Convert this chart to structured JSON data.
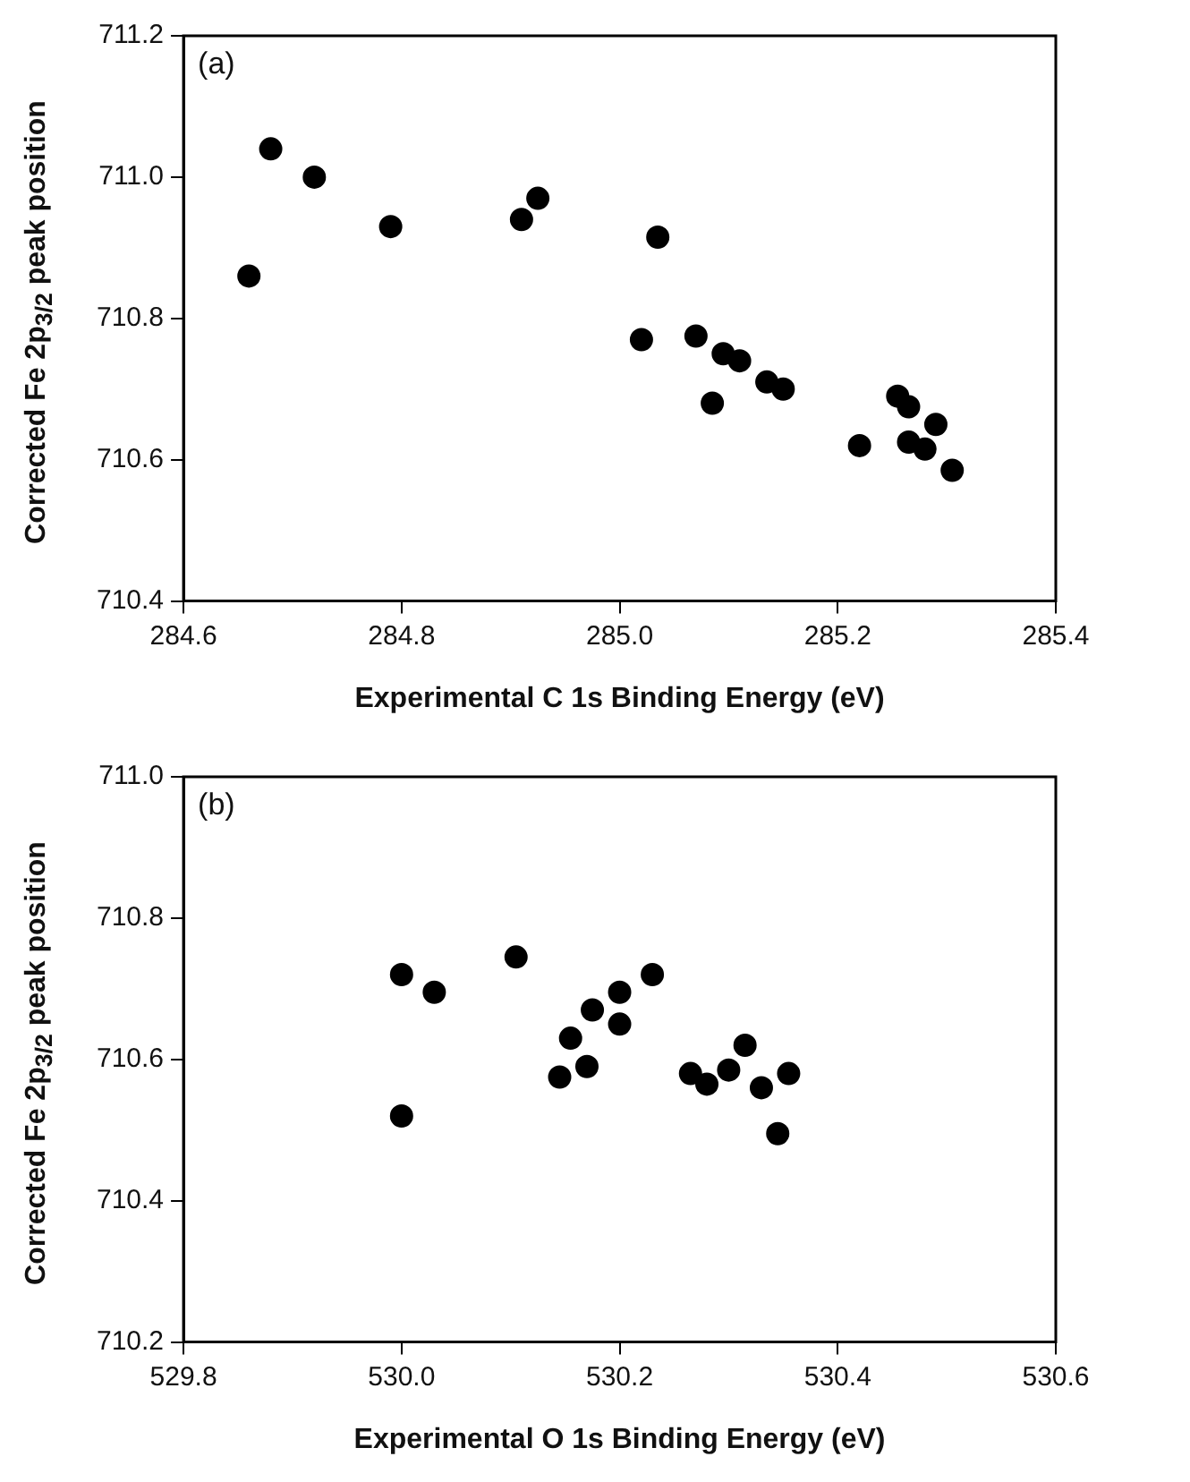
{
  "chart_data": [
    {
      "type": "scatter",
      "xlabel": "Experimental C 1s Binding Energy (eV)",
      "ylabel": "Corrected Fe 2p$_{3/2}$  peak position",
      "annotations": [
        "(a)"
      ],
      "marker": "circle",
      "grid": false,
      "legend": false,
      "xlim": [
        284.6,
        285.4
      ],
      "xticks": [
        284.6,
        284.8,
        {
          "value": 285,
          "label": "285.0"
        },
        285.2,
        285.4
      ],
      "ylim": [
        710.4,
        711.2
      ],
      "yticks": [
        710.4,
        710.6,
        710.8,
        {
          "value": 711,
          "label": "711.0"
        },
        711.2
      ],
      "series": [
        {
          "color": "#000000",
          "x": [
            284.66,
            284.68,
            284.72,
            284.79,
            284.91,
            284.925,
            285.02,
            285.035,
            285.07,
            285.085,
            285.095,
            285.11,
            285.135,
            285.15,
            285.22,
            285.255,
            285.265,
            285.265,
            285.28,
            285.29,
            285.305
          ],
          "values": [
            710.86,
            711.04,
            711.0,
            710.93,
            710.94,
            710.97,
            710.77,
            710.915,
            710.775,
            710.68,
            710.75,
            710.74,
            710.71,
            710.7,
            710.62,
            710.69,
            710.625,
            710.675,
            710.615,
            710.65,
            710.585
          ]
        }
      ]
    },
    {
      "type": "scatter",
      "xlabel": "Experimental O 1s Binding Energy (eV)",
      "ylabel": "Corrected Fe 2p$_{3/2}$  peak position",
      "annotations": [
        "(b)"
      ],
      "marker": "circle",
      "grid": false,
      "legend": false,
      "xlim": [
        529.8,
        530.6
      ],
      "xticks": [
        529.8,
        {
          "value": 530,
          "label": "530.0"
        },
        530.2,
        530.4,
        530.6
      ],
      "ylim": [
        710.2,
        711.0
      ],
      "yticks": [
        710.2,
        710.4,
        710.6,
        710.8,
        {
          "value": 711,
          "label": "711.0"
        }
      ],
      "series": [
        {
          "color": "#000000",
          "x": [
            530.0,
            530.0,
            530.03,
            530.105,
            530.145,
            530.155,
            530.17,
            530.175,
            530.2,
            530.2,
            530.23,
            530.265,
            530.28,
            530.3,
            530.315,
            530.33,
            530.345,
            530.355
          ],
          "values": [
            710.72,
            710.52,
            710.695,
            710.745,
            710.575,
            710.63,
            710.59,
            710.67,
            710.65,
            710.695,
            710.72,
            710.58,
            710.565,
            710.585,
            710.62,
            710.56,
            710.495,
            710.58
          ]
        }
      ]
    }
  ]
}
